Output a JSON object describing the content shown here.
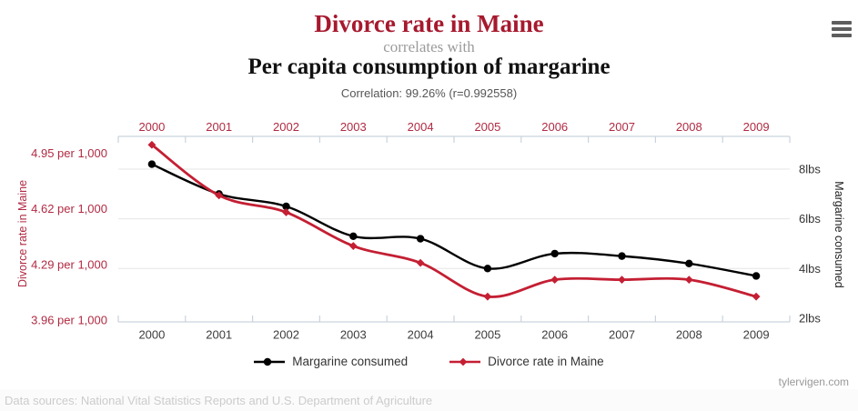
{
  "header": {
    "title1": "Divorce rate in Maine",
    "connector": "correlates with",
    "title2": "Per capita consumption of margarine",
    "correlation": "Correlation: 99.26% (r=0.992558)"
  },
  "colors": {
    "title_red": "#a6192e",
    "series_red": "#c41f33",
    "series_black": "#000000",
    "axis_label_red": "#b12a42",
    "axis_line": "#c9d3dd",
    "gridline": "#e6e6e6",
    "bottom_label": "#3c3c3c",
    "right_label": "#333333"
  },
  "chart_data": {
    "type": "line",
    "x": [
      2000,
      2001,
      2002,
      2003,
      2004,
      2005,
      2006,
      2007,
      2008,
      2009
    ],
    "series": [
      {
        "name": "Margarine consumed",
        "axis": "right",
        "color": "#000000",
        "marker": "circle",
        "values": [
          8.2,
          7.0,
          6.5,
          5.3,
          5.2,
          4.0,
          4.6,
          4.5,
          4.2,
          3.7
        ]
      },
      {
        "name": "Divorce rate in Maine",
        "axis": "left",
        "color": "#c41f33",
        "marker": "diamond",
        "values": [
          5.0,
          4.7,
          4.6,
          4.4,
          4.3,
          4.1,
          4.2,
          4.2,
          4.2,
          4.1
        ]
      }
    ],
    "left_axis": {
      "label": "Divorce rate in Maine",
      "ticks": [
        {
          "value": 4.95,
          "label": "4.95 per 1,000"
        },
        {
          "value": 4.62,
          "label": "4.62 per 1,000"
        },
        {
          "value": 4.29,
          "label": "4.29 per 1,000"
        },
        {
          "value": 3.96,
          "label": "3.96 per 1,000"
        }
      ],
      "ylim": [
        3.95,
        5.05
      ]
    },
    "right_axis": {
      "label": "Margarine consumed",
      "ticks": [
        {
          "value": 8,
          "label": "8lbs"
        },
        {
          "value": 6,
          "label": "6lbs"
        },
        {
          "value": 4,
          "label": "4lbs"
        },
        {
          "value": 2,
          "label": "2lbs"
        }
      ],
      "ylim": [
        1.85,
        9.32
      ],
      "gridline_values": [
        8,
        6,
        4
      ]
    },
    "grid": true,
    "legend_position": "bottom",
    "legend": [
      {
        "label": "Margarine consumed",
        "color": "#000000",
        "marker": "circle"
      },
      {
        "label": "Divorce rate in Maine",
        "color": "#c41f33",
        "marker": "diamond"
      }
    ]
  },
  "footer": {
    "data_sources": "Data sources: National Vital Statistics Reports and U.S. Department of Agriculture",
    "watermark": "tylervigen.com"
  }
}
